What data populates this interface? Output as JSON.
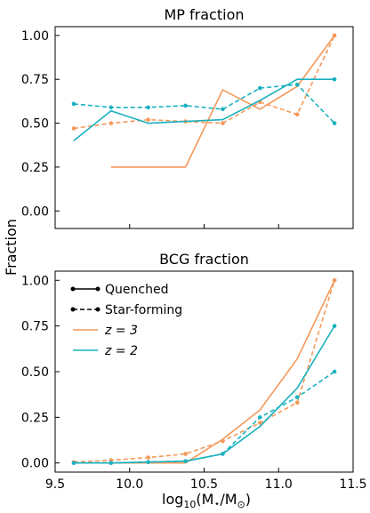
{
  "figure": {
    "ylabel": "Fraction",
    "xlabel_text": "log",
    "xlabel_sub": "10",
    "xlabel_rest": "(M",
    "xlabel_star": "⋆",
    "xlabel_mid": "/M",
    "xlabel_sun": "⊙",
    "xlabel_close": ")"
  },
  "legend": {
    "quenched": "Quenched",
    "star_forming": "Star-forming",
    "z3": "z = 3",
    "z2": "z = 2"
  },
  "colors": {
    "z3": "#f4995a",
    "z2": "#19b1bf"
  },
  "chart_data": [
    {
      "type": "line",
      "title": "MP fraction",
      "xlim": [
        9.5,
        11.5
      ],
      "ylim": [
        -0.1,
        1.05
      ],
      "yticks": [
        "0.00",
        "0.25",
        "0.50",
        "0.75",
        "1.00"
      ],
      "ytick_values": [
        0,
        0.25,
        0.5,
        0.75,
        1.0
      ],
      "xticks_values": [
        9.5,
        10.0,
        10.5,
        11.0,
        11.5
      ],
      "series": [
        {
          "z": "z = 3",
          "kind": "Quenched",
          "x": [
            9.875,
            10.375,
            10.625,
            10.875,
            11.125,
            11.375
          ],
          "y": [
            0.25,
            0.25,
            0.69,
            0.58,
            0.71,
            1.0
          ]
        },
        {
          "z": "z = 3",
          "kind": "Star-forming",
          "x": [
            9.625,
            9.875,
            10.125,
            10.375,
            10.625,
            10.875,
            11.125,
            11.375
          ],
          "y": [
            0.47,
            0.5,
            0.52,
            0.51,
            0.5,
            0.62,
            0.55,
            1.0
          ]
        },
        {
          "z": "z = 2",
          "kind": "Quenched",
          "x": [
            9.625,
            9.875,
            10.125,
            10.375,
            10.625,
            10.875,
            11.125,
            11.375
          ],
          "y": [
            0.4,
            0.57,
            0.5,
            0.51,
            0.52,
            0.63,
            0.75,
            0.75
          ]
        },
        {
          "z": "z = 2",
          "kind": "Star-forming",
          "x": [
            9.625,
            9.875,
            10.125,
            10.375,
            10.625,
            10.875,
            11.125,
            11.375
          ],
          "y": [
            0.61,
            0.59,
            0.59,
            0.6,
            0.58,
            0.7,
            0.72,
            0.5
          ]
        }
      ]
    },
    {
      "type": "line",
      "title": "BCG fraction",
      "xlim": [
        9.5,
        11.5
      ],
      "ylim": [
        -0.05,
        1.05
      ],
      "yticks": [
        "0.00",
        "0.25",
        "0.50",
        "0.75",
        "1.00"
      ],
      "ytick_values": [
        0,
        0.25,
        0.5,
        0.75,
        1.0
      ],
      "xticks": [
        "9.5",
        "10.0",
        "10.5",
        "11.0",
        "11.5"
      ],
      "xticks_values": [
        9.5,
        10.0,
        10.5,
        11.0,
        11.5
      ],
      "series": [
        {
          "z": "z = 3",
          "kind": "Quenched",
          "x": [
            9.625,
            9.875,
            10.125,
            10.375,
            10.625,
            10.875,
            11.125,
            11.375
          ],
          "y": [
            0.0,
            0.0,
            0.0,
            0.0,
            0.13,
            0.29,
            0.57,
            1.0
          ]
        },
        {
          "z": "z = 3",
          "kind": "Star-forming",
          "x": [
            9.625,
            9.875,
            10.125,
            10.375,
            10.625,
            10.875,
            11.125,
            11.375
          ],
          "y": [
            0.005,
            0.015,
            0.03,
            0.05,
            0.12,
            0.22,
            0.33,
            1.0
          ]
        },
        {
          "z": "z = 2",
          "kind": "Quenched",
          "x": [
            9.625,
            9.875,
            10.125,
            10.375,
            10.625,
            10.875,
            11.125,
            11.375
          ],
          "y": [
            0.0,
            0.0,
            0.005,
            0.01,
            0.05,
            0.2,
            0.41,
            0.75
          ]
        },
        {
          "z": "z = 2",
          "kind": "Star-forming",
          "x": [
            9.625,
            9.875,
            10.125,
            10.375,
            10.625,
            10.875,
            11.125,
            11.375
          ],
          "y": [
            0.0,
            0.0,
            0.005,
            0.01,
            0.05,
            0.25,
            0.36,
            0.5
          ]
        }
      ]
    }
  ]
}
